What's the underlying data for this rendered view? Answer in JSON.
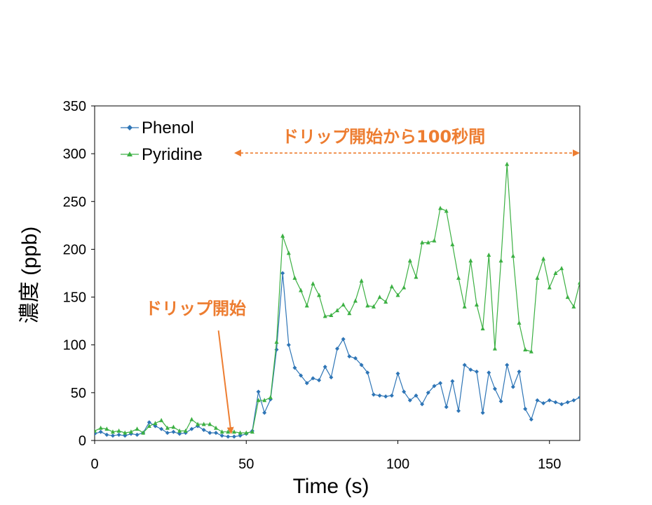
{
  "chart_data": {
    "type": "line",
    "xlabel": "Time (s)",
    "ylabel": "濃度 (ppb)",
    "xlim": [
      0,
      160
    ],
    "ylim": [
      0,
      350
    ],
    "xticks": [
      0,
      50,
      100,
      150
    ],
    "yticks": [
      0,
      50,
      100,
      150,
      200,
      250,
      300,
      350
    ],
    "grid": false,
    "legend": "top-left",
    "series": [
      {
        "name": "Phenol",
        "color": "#2E75B6",
        "marker": "diamond",
        "x": [
          0,
          2,
          4,
          6,
          8,
          10,
          12,
          14,
          16,
          18,
          20,
          22,
          24,
          26,
          28,
          30,
          32,
          34,
          36,
          38,
          40,
          42,
          44,
          46,
          48,
          50,
          52,
          54,
          56,
          58,
          60,
          62,
          64,
          66,
          68,
          70,
          72,
          74,
          76,
          78,
          80,
          82,
          84,
          86,
          88,
          90,
          92,
          94,
          96,
          98,
          100,
          102,
          104,
          106,
          108,
          110,
          112,
          114,
          116,
          118,
          120,
          122,
          124,
          126,
          128,
          130,
          132,
          134,
          136,
          138,
          140,
          142,
          144,
          146,
          148,
          150,
          152,
          154,
          156,
          158,
          160
        ],
        "y": [
          7,
          9,
          6,
          5,
          6,
          5,
          7,
          6,
          8,
          19,
          15,
          12,
          8,
          9,
          7,
          8,
          12,
          15,
          11,
          8,
          8,
          5,
          4,
          4,
          5,
          7,
          10,
          51,
          29,
          43,
          95,
          175,
          100,
          76,
          68,
          60,
          65,
          63,
          77,
          66,
          96,
          106,
          88,
          86,
          79,
          71,
          48,
          47,
          46,
          47,
          70,
          51,
          42,
          47,
          38,
          50,
          57,
          60,
          35,
          62,
          31,
          79,
          74,
          72,
          29,
          71,
          54,
          41,
          79,
          56,
          72,
          33,
          22,
          42,
          39,
          42,
          40,
          38,
          40,
          42,
          45
        ]
      },
      {
        "name": "Pyridine",
        "color": "#3CB043",
        "marker": "triangle",
        "x": [
          0,
          2,
          4,
          6,
          8,
          10,
          12,
          14,
          16,
          18,
          20,
          22,
          24,
          26,
          28,
          30,
          32,
          34,
          36,
          38,
          40,
          42,
          44,
          46,
          48,
          50,
          52,
          54,
          56,
          58,
          60,
          62,
          64,
          66,
          68,
          70,
          72,
          74,
          76,
          78,
          80,
          82,
          84,
          86,
          88,
          90,
          92,
          94,
          96,
          98,
          100,
          102,
          104,
          106,
          108,
          110,
          112,
          114,
          116,
          118,
          120,
          122,
          124,
          126,
          128,
          130,
          132,
          134,
          136,
          138,
          140,
          142,
          144,
          146,
          148,
          150,
          152,
          154,
          156,
          158,
          160
        ],
        "y": [
          10,
          13,
          12,
          9,
          10,
          8,
          9,
          12,
          8,
          15,
          18,
          21,
          13,
          14,
          10,
          10,
          22,
          17,
          17,
          17,
          13,
          9,
          9,
          9,
          8,
          8,
          9,
          42,
          42,
          45,
          103,
          214,
          196,
          170,
          157,
          141,
          164,
          152,
          130,
          131,
          136,
          142,
          133,
          146,
          167,
          141,
          140,
          150,
          145,
          161,
          152,
          160,
          188,
          171,
          207,
          207,
          209,
          243,
          240,
          205,
          170,
          140,
          188,
          142,
          117,
          194,
          96,
          188,
          289,
          193,
          123,
          95,
          93,
          170,
          190,
          160,
          175,
          180,
          150,
          140,
          165
        ]
      }
    ],
    "annotations": [
      {
        "text": "ドリップ開始",
        "x": 45,
        "arrow_from_y": 115,
        "arrow_to_y": 8
      },
      {
        "text": "ドリップ開始から100秒間",
        "x_start": 46,
        "x_end": 160,
        "y": 300
      }
    ]
  }
}
